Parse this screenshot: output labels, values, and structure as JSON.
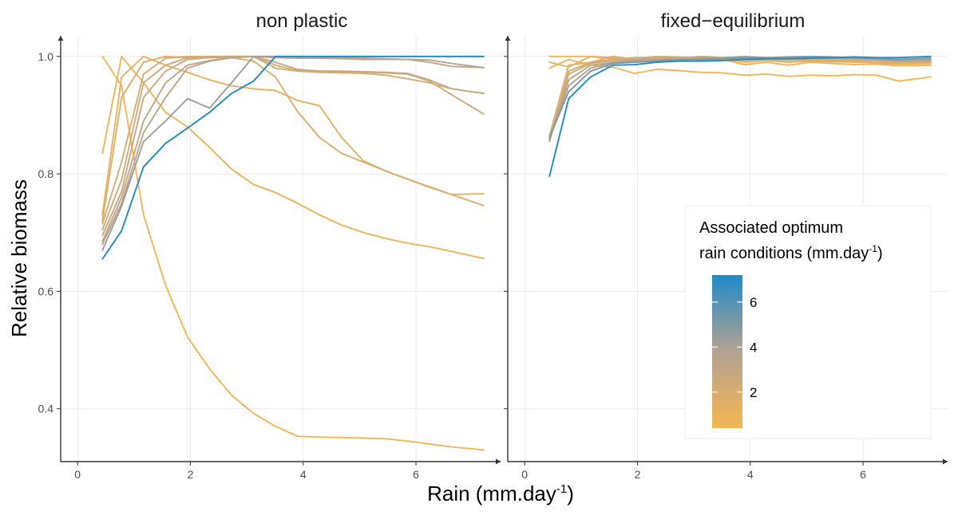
{
  "chart_data": {
    "type": "line",
    "xlabel": "Rain (mm.day",
    "xlabel_sup": "-1",
    "xlabel_end": ")",
    "ylabel": "Relative biomass",
    "xlim": [
      -0.3,
      7.5
    ],
    "ylim": [
      0.31,
      1.035
    ],
    "x_ticks": [
      0,
      2,
      4,
      6
    ],
    "y_ticks": [
      0.4,
      0.6,
      0.8,
      1.0
    ],
    "x_tick_labels": [
      "0",
      "2",
      "4",
      "6"
    ],
    "y_tick_labels": [
      "0.4",
      "0.6",
      "0.8",
      "1.0"
    ],
    "grid": true,
    "color_scale": {
      "low_color": "#F5B652",
      "mid_color": "#B3A292",
      "high_color": "#1F8BC6",
      "min": 0.4,
      "max": 7.2
    },
    "legend": {
      "position": "right-inside",
      "title_line1": "Associated optimum",
      "title_line2": "rain conditions (mm.day",
      "title_sup": "-1",
      "title_end": ")",
      "ticks": [
        2,
        4,
        6
      ],
      "tick_labels": [
        "2",
        "4",
        "6"
      ]
    },
    "panels": [
      {
        "title": "non plastic",
        "series": [
          {
            "optimum": 0.44,
            "x": [
              0.44,
              0.78,
              1.17,
              1.56,
              1.95,
              2.34,
              2.73,
              3.12,
              3.51,
              3.9,
              4.29,
              4.68,
              5.07,
              5.46,
              5.85,
              6.24,
              6.63,
              7.2
            ],
            "y": [
              1.0,
              0.95,
              0.73,
              0.61,
              0.522,
              0.468,
              0.423,
              0.392,
              0.37,
              0.353,
              0.352,
              0.351,
              0.35,
              0.349,
              0.345,
              0.34,
              0.335,
              0.33
            ]
          },
          {
            "optimum": 0.78,
            "x": [
              0.44,
              0.78,
              1.17,
              1.56,
              1.95,
              2.34,
              2.73,
              3.12,
              3.51,
              3.9,
              4.29,
              4.68,
              5.07,
              5.46,
              5.85,
              6.24,
              6.63,
              7.2
            ],
            "y": [
              0.835,
              1.0,
              0.955,
              0.905,
              0.88,
              0.845,
              0.808,
              0.782,
              0.768,
              0.75,
              0.73,
              0.713,
              0.7,
              0.69,
              0.682,
              0.676,
              0.668,
              0.656
            ]
          },
          {
            "optimum": 1.17,
            "x": [
              0.44,
              0.78,
              1.17,
              1.56,
              1.95,
              2.34,
              2.73,
              3.12,
              3.51,
              3.9,
              4.29,
              4.68,
              5.07,
              5.46,
              5.85,
              6.24,
              6.63,
              7.2
            ],
            "y": [
              0.73,
              0.965,
              1.0,
              0.985,
              0.973,
              0.96,
              0.95,
              0.945,
              0.942,
              0.925,
              0.916,
              0.862,
              0.822,
              0.805,
              0.791,
              0.777,
              0.765,
              0.766
            ]
          },
          {
            "optimum": 1.56,
            "x": [
              0.44,
              0.78,
              1.17,
              1.56,
              1.95,
              2.34,
              2.73,
              3.12,
              3.51,
              3.9,
              4.29,
              4.68,
              5.07,
              5.46,
              5.85,
              6.24,
              6.63,
              7.2
            ],
            "y": [
              0.72,
              0.93,
              0.99,
              1.0,
              0.998,
              0.998,
              0.998,
              0.992,
              0.965,
              0.906,
              0.862,
              0.835,
              0.82,
              0.805,
              0.791,
              0.778,
              0.765,
              0.746
            ]
          },
          {
            "optimum": 1.95,
            "x": [
              0.44,
              0.78,
              1.17,
              1.56,
              1.95,
              2.34,
              2.73,
              3.12,
              3.51,
              3.9,
              4.29,
              4.68,
              5.07,
              5.46,
              5.85,
              6.24,
              6.63,
              7.2
            ],
            "y": [
              0.715,
              0.82,
              0.97,
              0.997,
              1.0,
              1.0,
              1.0,
              1.0,
              0.98,
              0.975,
              0.973,
              0.972,
              0.971,
              0.968,
              0.962,
              0.955,
              0.945,
              0.937
            ]
          },
          {
            "optimum": 2.34,
            "x": [
              0.44,
              0.78,
              1.17,
              1.56,
              1.95,
              2.34,
              2.73,
              3.12,
              3.51,
              3.9,
              4.29,
              4.68,
              5.07,
              5.46,
              5.85,
              6.24,
              6.63,
              7.2
            ],
            "y": [
              0.705,
              0.79,
              0.955,
              0.985,
              0.998,
              1.0,
              1.0,
              1.0,
              0.985,
              0.976,
              0.975,
              0.974,
              0.973,
              0.972,
              0.97,
              0.958,
              0.935,
              0.902
            ]
          },
          {
            "optimum": 2.73,
            "x": [
              0.44,
              0.78,
              1.17,
              1.56,
              1.95,
              2.34,
              2.73,
              3.12,
              3.51,
              3.9,
              4.29,
              4.68,
              5.07,
              5.46,
              5.85,
              6.24,
              6.63,
              7.2
            ],
            "y": [
              0.695,
              0.77,
              0.93,
              0.975,
              0.995,
              0.998,
              1.0,
              1.0,
              0.99,
              0.978,
              0.975,
              0.975,
              0.974,
              0.973,
              0.971,
              0.96,
              0.945,
              0.937
            ]
          },
          {
            "optimum": 3.12,
            "x": [
              0.44,
              0.78,
              1.17,
              1.56,
              1.95,
              2.34,
              2.73,
              3.12,
              3.51,
              3.9,
              4.29,
              4.68,
              5.07,
              5.46,
              5.85,
              6.24,
              6.63,
              7.2
            ],
            "y": [
              0.685,
              0.76,
              0.89,
              0.955,
              0.985,
              0.993,
              0.998,
              1.0,
              0.998,
              0.997,
              0.997,
              0.996,
              0.995,
              0.995,
              0.995,
              0.99,
              0.983,
              0.981
            ]
          },
          {
            "optimum": 3.51,
            "x": [
              0.44,
              0.78,
              1.17,
              1.56,
              1.95,
              2.34,
              2.73,
              3.12,
              3.51,
              3.9,
              4.29,
              4.68,
              5.07,
              5.46,
              5.85,
              6.24,
              6.63,
              7.2
            ],
            "y": [
              0.68,
              0.75,
              0.87,
              0.93,
              0.98,
              0.992,
              0.998,
              1.0,
              1.0,
              0.999,
              0.999,
              0.998,
              0.997,
              0.996,
              0.995,
              0.994,
              0.988,
              0.981
            ]
          },
          {
            "optimum": 4.29,
            "x": [
              0.44,
              0.78,
              1.17,
              1.56,
              1.95,
              2.34,
              2.73,
              3.12,
              3.51,
              3.9,
              4.29,
              4.68,
              5.07,
              5.46,
              5.85,
              6.24,
              6.63,
              7.2
            ],
            "y": [
              0.67,
              0.745,
              0.855,
              0.89,
              0.928,
              0.912,
              0.955,
              1.0,
              1.0,
              1.0,
              1.0,
              1.0,
              1.0,
              1.0,
              1.0,
              1.0,
              1.0,
              1.0
            ]
          },
          {
            "optimum": 7.2,
            "x": [
              0.44,
              0.78,
              1.17,
              1.56,
              1.95,
              2.34,
              2.73,
              3.12,
              3.51,
              3.9,
              4.29,
              4.68,
              5.07,
              5.46,
              5.85,
              6.24,
              6.63,
              7.2
            ],
            "y": [
              0.655,
              0.703,
              0.812,
              0.852,
              0.878,
              0.905,
              0.937,
              0.958,
              1.0,
              1.0,
              1.0,
              1.0,
              1.0,
              1.0,
              1.0,
              1.0,
              1.0,
              1.0
            ]
          }
        ]
      },
      {
        "title": "fixed−equilibrium",
        "series": [
          {
            "optimum": 0.44,
            "x": [
              0.44,
              0.78,
              1.17,
              1.56,
              1.95,
              2.34,
              2.73,
              3.12,
              3.51,
              3.9,
              4.29,
              4.68,
              5.07,
              5.46,
              5.85,
              6.24,
              6.63,
              7.2
            ],
            "y": [
              0.98,
              0.995,
              0.985,
              0.982,
              0.971,
              0.978,
              0.976,
              0.973,
              0.972,
              0.968,
              0.97,
              0.966,
              0.968,
              0.967,
              0.969,
              0.968,
              0.958,
              0.965
            ]
          },
          {
            "optimum": 0.78,
            "x": [
              0.44,
              0.78,
              1.17,
              1.56,
              1.95,
              2.34,
              2.73,
              3.12,
              3.51,
              3.9,
              4.29,
              4.68,
              5.07,
              5.46,
              5.85,
              6.24,
              6.63,
              7.2
            ],
            "y": [
              1.0,
              1.0,
              1.0,
              0.998,
              0.992,
              0.995,
              0.993,
              0.992,
              0.995,
              0.986,
              0.99,
              0.985,
              0.99,
              0.988,
              0.986,
              0.987,
              0.984,
              0.985
            ]
          },
          {
            "optimum": 1.17,
            "x": [
              0.44,
              0.78,
              1.17,
              1.56,
              1.95,
              2.34,
              2.73,
              3.12,
              3.51,
              3.9,
              4.29,
              4.68,
              5.07,
              5.46,
              5.85,
              6.24,
              6.63,
              7.2
            ],
            "y": [
              0.99,
              0.982,
              1.0,
              0.996,
              0.994,
              0.997,
              0.995,
              0.993,
              0.996,
              0.99,
              0.993,
              0.99,
              0.992,
              0.991,
              0.99,
              0.989,
              0.987,
              0.988
            ]
          },
          {
            "optimum": 1.56,
            "x": [
              0.44,
              0.78,
              1.17,
              1.56,
              1.95,
              2.34,
              2.73,
              3.12,
              3.51,
              3.9,
              4.29,
              4.68,
              5.07,
              5.46,
              5.85,
              6.24,
              6.63,
              7.2
            ],
            "y": [
              0.865,
              0.985,
              0.99,
              1.0,
              0.995,
              0.997,
              0.996,
              0.994,
              0.997,
              0.993,
              0.995,
              0.993,
              0.994,
              0.993,
              0.992,
              0.99,
              0.989,
              0.99
            ]
          },
          {
            "optimum": 1.95,
            "x": [
              0.44,
              0.78,
              1.17,
              1.56,
              1.95,
              2.34,
              2.73,
              3.12,
              3.51,
              3.9,
              4.29,
              4.68,
              5.07,
              5.46,
              5.85,
              6.24,
              6.63,
              7.2
            ],
            "y": [
              0.86,
              0.975,
              0.99,
              0.995,
              0.998,
              0.998,
              0.997,
              0.996,
              0.997,
              0.995,
              0.996,
              0.995,
              0.996,
              0.995,
              0.994,
              0.993,
              0.991,
              0.992
            ]
          },
          {
            "optimum": 2.34,
            "x": [
              0.44,
              0.78,
              1.17,
              1.56,
              1.95,
              2.34,
              2.73,
              3.12,
              3.51,
              3.9,
              4.29,
              4.68,
              5.07,
              5.46,
              5.85,
              6.24,
              6.63,
              7.2
            ],
            "y": [
              0.855,
              0.97,
              0.988,
              0.993,
              0.996,
              1.0,
              0.999,
              0.998,
              0.998,
              0.997,
              0.997,
              0.996,
              0.997,
              0.996,
              0.996,
              0.994,
              0.993,
              0.994
            ]
          },
          {
            "optimum": 3.12,
            "x": [
              0.44,
              0.78,
              1.17,
              1.56,
              1.95,
              2.34,
              2.73,
              3.12,
              3.51,
              3.9,
              4.29,
              4.68,
              5.07,
              5.46,
              5.85,
              6.24,
              6.63,
              7.2
            ],
            "y": [
              0.858,
              0.96,
              0.985,
              0.99,
              0.994,
              0.996,
              0.997,
              1.0,
              0.998,
              0.997,
              0.998,
              0.997,
              0.997,
              0.997,
              0.996,
              0.995,
              0.992,
              0.993
            ]
          },
          {
            "optimum": 3.9,
            "x": [
              0.44,
              0.78,
              1.17,
              1.56,
              1.95,
              2.34,
              2.73,
              3.12,
              3.51,
              3.9,
              4.29,
              4.68,
              5.07,
              5.46,
              5.85,
              6.24,
              6.63,
              7.2
            ],
            "y": [
              0.86,
              0.95,
              0.98,
              0.99,
              0.992,
              0.994,
              0.995,
              0.996,
              0.998,
              1.0,
              0.998,
              0.997,
              0.998,
              0.997,
              0.997,
              0.995,
              0.993,
              0.995
            ]
          },
          {
            "optimum": 5.07,
            "x": [
              0.44,
              0.78,
              1.17,
              1.56,
              1.95,
              2.34,
              2.73,
              3.12,
              3.51,
              3.9,
              4.29,
              4.68,
              5.07,
              5.46,
              5.85,
              6.24,
              6.63,
              7.2
            ],
            "y": [
              0.862,
              0.94,
              0.975,
              0.988,
              0.99,
              0.992,
              0.994,
              0.995,
              0.996,
              0.998,
              0.998,
              0.999,
              1.0,
              0.999,
              0.998,
              0.997,
              0.995,
              0.997
            ]
          },
          {
            "optimum": 7.2,
            "x": [
              0.44,
              0.78,
              1.17,
              1.56,
              1.95,
              2.34,
              2.73,
              3.12,
              3.51,
              3.9,
              4.29,
              4.68,
              5.07,
              5.46,
              5.85,
              6.24,
              6.63,
              7.2
            ],
            "y": [
              0.796,
              0.928,
              0.965,
              0.985,
              0.986,
              0.99,
              0.992,
              0.992,
              0.993,
              0.995,
              0.996,
              0.996,
              0.997,
              0.998,
              0.999,
              0.998,
              0.998,
              1.0
            ]
          }
        ]
      }
    ]
  }
}
